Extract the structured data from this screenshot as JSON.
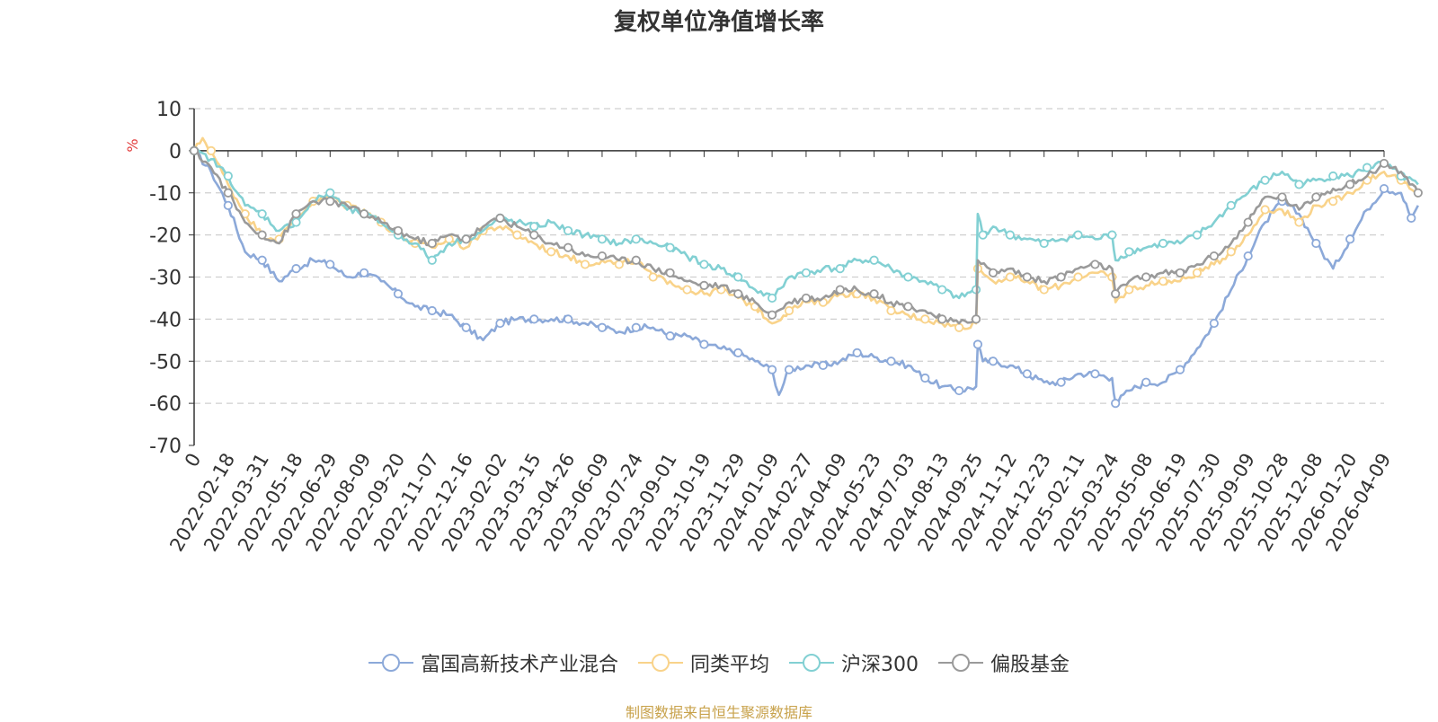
{
  "chart_data": {
    "type": "line",
    "title": "复权单位净值增长率",
    "ylabel": "%",
    "ylim": [
      -70,
      10
    ],
    "yticks": [
      10,
      0,
      -10,
      -20,
      -30,
      -40,
      -50,
      -60,
      -70
    ],
    "x_ticks": [
      "0",
      "2022-02-18",
      "2022-03-31",
      "2022-05-18",
      "2022-06-29",
      "2022-08-09",
      "2022-09-20",
      "2022-11-07",
      "2022-12-16",
      "2023-02-02",
      "2023-03-15",
      "2023-04-26",
      "2023-06-09",
      "2023-07-24",
      "2023-09-01",
      "2023-10-19",
      "2023-11-29",
      "2024-01-09",
      "2024-02-27",
      "2024-04-09",
      "2024-05-23",
      "2024-07-03",
      "2024-08-13",
      "2024-09-25",
      "2024-11-12",
      "2024-12-23",
      "2025-02-11",
      "2025-03-24",
      "2025-05-08",
      "2025-06-19",
      "2025-07-30",
      "2025-09-09",
      "2025-10-28",
      "2025-12-08",
      "2026-01-20",
      "2026-04-09"
    ],
    "series": [
      {
        "name": "富国高新技术产业混合",
        "color": "#8ca9d9",
        "points": [
          [
            0,
            0
          ],
          [
            0.5,
            -5
          ],
          [
            1,
            -13
          ],
          [
            1.5,
            -24
          ],
          [
            2,
            -26
          ],
          [
            2.5,
            -31
          ],
          [
            3,
            -28
          ],
          [
            3.5,
            -26
          ],
          [
            4,
            -27
          ],
          [
            4.5,
            -30
          ],
          [
            5,
            -29
          ],
          [
            5.5,
            -31
          ],
          [
            6,
            -34
          ],
          [
            6.5,
            -37
          ],
          [
            7,
            -38
          ],
          [
            7.5,
            -39
          ],
          [
            8,
            -42
          ],
          [
            8.5,
            -45
          ],
          [
            9,
            -41
          ],
          [
            9.5,
            -40
          ],
          [
            10,
            -40
          ],
          [
            10.5,
            -40
          ],
          [
            11,
            -40
          ],
          [
            11.5,
            -41
          ],
          [
            12,
            -42
          ],
          [
            12.5,
            -43
          ],
          [
            13,
            -42
          ],
          [
            13.5,
            -42
          ],
          [
            14,
            -44
          ],
          [
            14.5,
            -44
          ],
          [
            15,
            -46
          ],
          [
            15.5,
            -47
          ],
          [
            16,
            -48
          ],
          [
            16.5,
            -50
          ],
          [
            17,
            -52
          ],
          [
            17.2,
            -58
          ],
          [
            17.5,
            -52
          ],
          [
            18,
            -51
          ],
          [
            18.5,
            -51
          ],
          [
            19,
            -50
          ],
          [
            19.5,
            -48
          ],
          [
            20,
            -49
          ],
          [
            20.5,
            -50
          ],
          [
            21,
            -51
          ],
          [
            21.5,
            -54
          ],
          [
            22,
            -56
          ],
          [
            22.5,
            -57
          ],
          [
            23,
            -56
          ],
          [
            23.05,
            -46
          ],
          [
            23.2,
            -50
          ],
          [
            23.5,
            -50
          ],
          [
            24,
            -51
          ],
          [
            24.5,
            -53
          ],
          [
            25,
            -55
          ],
          [
            25.5,
            -55
          ],
          [
            26,
            -53
          ],
          [
            26.5,
            -53
          ],
          [
            27,
            -54
          ],
          [
            27.1,
            -60
          ],
          [
            27.5,
            -57
          ],
          [
            28,
            -55
          ],
          [
            28.5,
            -55
          ],
          [
            29,
            -52
          ],
          [
            29.5,
            -47
          ],
          [
            30,
            -41
          ],
          [
            30.5,
            -33
          ],
          [
            31,
            -25
          ],
          [
            31.5,
            -17
          ],
          [
            32,
            -12
          ],
          [
            32.5,
            -15
          ],
          [
            33,
            -22
          ],
          [
            33.5,
            -28
          ],
          [
            34,
            -21
          ],
          [
            34.5,
            -14
          ],
          [
            35,
            -9
          ],
          [
            35.5,
            -10
          ],
          [
            35.8,
            -16
          ],
          [
            36,
            -13
          ]
        ]
      },
      {
        "name": "同类平均",
        "color": "#f9d38a",
        "points": [
          [
            0,
            0
          ],
          [
            0.25,
            3
          ],
          [
            0.5,
            0
          ],
          [
            1,
            -8
          ],
          [
            1.5,
            -15
          ],
          [
            2,
            -20
          ],
          [
            2.5,
            -21
          ],
          [
            3,
            -16
          ],
          [
            3.5,
            -12
          ],
          [
            4,
            -11
          ],
          [
            4.5,
            -13
          ],
          [
            5,
            -14
          ],
          [
            5.5,
            -17
          ],
          [
            6,
            -20
          ],
          [
            6.5,
            -22
          ],
          [
            7,
            -23
          ],
          [
            7.5,
            -21
          ],
          [
            8,
            -23
          ],
          [
            8.5,
            -19
          ],
          [
            9,
            -18
          ],
          [
            9.5,
            -20
          ],
          [
            10,
            -22
          ],
          [
            10.5,
            -24
          ],
          [
            11,
            -25
          ],
          [
            11.5,
            -27
          ],
          [
            12,
            -26
          ],
          [
            12.5,
            -27
          ],
          [
            13,
            -26
          ],
          [
            13.5,
            -30
          ],
          [
            14,
            -31
          ],
          [
            14.5,
            -33
          ],
          [
            15,
            -34
          ],
          [
            15.5,
            -33
          ],
          [
            16,
            -35
          ],
          [
            16.5,
            -37
          ],
          [
            17,
            -41
          ],
          [
            17.5,
            -38
          ],
          [
            18,
            -36
          ],
          [
            18.5,
            -36
          ],
          [
            19,
            -34
          ],
          [
            19.5,
            -34
          ],
          [
            20,
            -35
          ],
          [
            20.5,
            -38
          ],
          [
            21,
            -39
          ],
          [
            21.5,
            -40
          ],
          [
            22,
            -41
          ],
          [
            22.5,
            -42
          ],
          [
            23,
            -41
          ],
          [
            23.05,
            -28
          ],
          [
            23.5,
            -31
          ],
          [
            24,
            -30
          ],
          [
            24.5,
            -31
          ],
          [
            25,
            -33
          ],
          [
            25.5,
            -32
          ],
          [
            26,
            -30
          ],
          [
            26.5,
            -29
          ],
          [
            27,
            -30
          ],
          [
            27.1,
            -36
          ],
          [
            27.5,
            -33
          ],
          [
            28,
            -32
          ],
          [
            28.5,
            -31
          ],
          [
            29,
            -31
          ],
          [
            29.5,
            -29
          ],
          [
            30,
            -27
          ],
          [
            30.5,
            -24
          ],
          [
            31,
            -20
          ],
          [
            31.5,
            -14
          ],
          [
            32,
            -14
          ],
          [
            32.5,
            -17
          ],
          [
            33,
            -13
          ],
          [
            33.5,
            -12
          ],
          [
            34,
            -10
          ],
          [
            34.5,
            -7
          ],
          [
            35,
            -5
          ],
          [
            35.5,
            -7
          ],
          [
            36,
            -11
          ]
        ]
      },
      {
        "name": "沪深300",
        "color": "#82d0d3",
        "points": [
          [
            0,
            0
          ],
          [
            0.5,
            -2
          ],
          [
            1,
            -6
          ],
          [
            1.5,
            -13
          ],
          [
            2,
            -15
          ],
          [
            2.5,
            -19
          ],
          [
            3,
            -17
          ],
          [
            3.5,
            -12
          ],
          [
            4,
            -10
          ],
          [
            4.5,
            -14
          ],
          [
            5,
            -15
          ],
          [
            5.5,
            -17
          ],
          [
            6,
            -20
          ],
          [
            6.5,
            -22
          ],
          [
            7,
            -26
          ],
          [
            7.5,
            -22
          ],
          [
            8,
            -21
          ],
          [
            8.5,
            -19
          ],
          [
            9,
            -16
          ],
          [
            9.5,
            -17
          ],
          [
            10,
            -18
          ],
          [
            10.5,
            -17
          ],
          [
            11,
            -19
          ],
          [
            11.5,
            -20
          ],
          [
            12,
            -21
          ],
          [
            12.5,
            -22
          ],
          [
            13,
            -21
          ],
          [
            13.5,
            -22
          ],
          [
            14,
            -23
          ],
          [
            14.5,
            -25
          ],
          [
            15,
            -27
          ],
          [
            15.5,
            -28
          ],
          [
            16,
            -30
          ],
          [
            16.5,
            -33
          ],
          [
            17,
            -35
          ],
          [
            17.5,
            -30
          ],
          [
            18,
            -29
          ],
          [
            18.5,
            -28
          ],
          [
            19,
            -28
          ],
          [
            19.5,
            -26
          ],
          [
            20,
            -26
          ],
          [
            20.5,
            -28
          ],
          [
            21,
            -30
          ],
          [
            21.5,
            -31
          ],
          [
            22,
            -33
          ],
          [
            22.5,
            -35
          ],
          [
            23,
            -33
          ],
          [
            23.05,
            -15
          ],
          [
            23.2,
            -20
          ],
          [
            23.5,
            -18
          ],
          [
            24,
            -20
          ],
          [
            24.5,
            -21
          ],
          [
            25,
            -22
          ],
          [
            25.5,
            -21
          ],
          [
            26,
            -20
          ],
          [
            26.5,
            -21
          ],
          [
            27,
            -20
          ],
          [
            27.1,
            -26
          ],
          [
            27.5,
            -24
          ],
          [
            28,
            -23
          ],
          [
            28.5,
            -22
          ],
          [
            29,
            -22
          ],
          [
            29.5,
            -20
          ],
          [
            30,
            -17
          ],
          [
            30.5,
            -13
          ],
          [
            31,
            -10
          ],
          [
            31.5,
            -7
          ],
          [
            32,
            -5
          ],
          [
            32.5,
            -8
          ],
          [
            33,
            -7
          ],
          [
            33.5,
            -6
          ],
          [
            34,
            -6
          ],
          [
            34.5,
            -4
          ],
          [
            35,
            -3
          ],
          [
            35.5,
            -6
          ],
          [
            36,
            -8
          ]
        ]
      },
      {
        "name": "偏股基金",
        "color": "#9a9a9a",
        "points": [
          [
            0,
            0
          ],
          [
            0.5,
            -4
          ],
          [
            1,
            -10
          ],
          [
            1.5,
            -17
          ],
          [
            2,
            -20
          ],
          [
            2.5,
            -22
          ],
          [
            3,
            -15
          ],
          [
            3.5,
            -12
          ],
          [
            4,
            -12
          ],
          [
            4.5,
            -13
          ],
          [
            5,
            -15
          ],
          [
            5.5,
            -17
          ],
          [
            6,
            -19
          ],
          [
            6.5,
            -21
          ],
          [
            7,
            -22
          ],
          [
            7.5,
            -20
          ],
          [
            8,
            -21
          ],
          [
            8.5,
            -18
          ],
          [
            9,
            -16
          ],
          [
            9.5,
            -18
          ],
          [
            10,
            -20
          ],
          [
            10.5,
            -22
          ],
          [
            11,
            -23
          ],
          [
            11.5,
            -25
          ],
          [
            12,
            -25
          ],
          [
            12.5,
            -26
          ],
          [
            13,
            -26
          ],
          [
            13.5,
            -28
          ],
          [
            14,
            -29
          ],
          [
            14.5,
            -31
          ],
          [
            15,
            -32
          ],
          [
            15.5,
            -32
          ],
          [
            16,
            -34
          ],
          [
            16.5,
            -36
          ],
          [
            17,
            -39
          ],
          [
            17.5,
            -36
          ],
          [
            18,
            -35
          ],
          [
            18.5,
            -35
          ],
          [
            19,
            -33
          ],
          [
            19.5,
            -33
          ],
          [
            20,
            -34
          ],
          [
            20.5,
            -36
          ],
          [
            21,
            -37
          ],
          [
            21.5,
            -38
          ],
          [
            22,
            -40
          ],
          [
            22.5,
            -41
          ],
          [
            23,
            -40
          ],
          [
            23.05,
            -26
          ],
          [
            23.5,
            -29
          ],
          [
            24,
            -28
          ],
          [
            24.5,
            -30
          ],
          [
            25,
            -31
          ],
          [
            25.5,
            -30
          ],
          [
            26,
            -28
          ],
          [
            26.5,
            -27
          ],
          [
            27,
            -28
          ],
          [
            27.1,
            -34
          ],
          [
            27.5,
            -31
          ],
          [
            28,
            -30
          ],
          [
            28.5,
            -29
          ],
          [
            29,
            -29
          ],
          [
            29.5,
            -27
          ],
          [
            30,
            -25
          ],
          [
            30.5,
            -22
          ],
          [
            31,
            -17
          ],
          [
            31.5,
            -11
          ],
          [
            32,
            -11
          ],
          [
            32.5,
            -14
          ],
          [
            33,
            -11
          ],
          [
            33.5,
            -9
          ],
          [
            34,
            -8
          ],
          [
            34.5,
            -6
          ],
          [
            35,
            -3
          ],
          [
            35.5,
            -5
          ],
          [
            36,
            -10
          ]
        ]
      }
    ]
  },
  "footer": {
    "source": "制图数据来自恒生聚源数据库"
  }
}
